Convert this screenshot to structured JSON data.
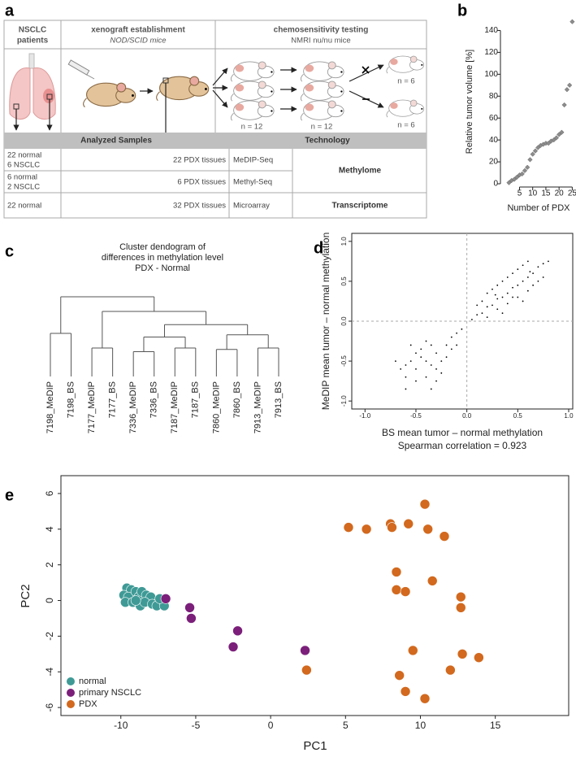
{
  "panel_a": {
    "label": "a",
    "columns": [
      {
        "title": [
          "NSCLC",
          "patients"
        ]
      },
      {
        "title": [
          "xenograft establishment"
        ],
        "subtitle": "NOD/SCID mice"
      },
      {
        "title": [
          "chemosensitivity testing"
        ],
        "subtitle": "NMRI nu/nu mice"
      }
    ],
    "group_sizes": [
      "n = 12",
      "n = 12",
      "n = 6",
      "n = 6"
    ],
    "table": {
      "headers": [
        "Analyzed Samples",
        "Technology"
      ],
      "rows": [
        {
          "samples": [
            "22 normal",
            "6 NSCLC"
          ],
          "tissues": "22 PDX tissues",
          "method": "MeDIP-Seq"
        },
        {
          "samples": [
            "6 normal",
            "2 NSCLC"
          ],
          "tissues": "6 PDX tissues",
          "method": "Methyl-Seq"
        },
        {
          "samples": [
            "22 normal"
          ],
          "tissues": "32 PDX tissues",
          "method": "Microarray"
        }
      ],
      "technologies": [
        "Methylome",
        "Transcriptome"
      ]
    }
  },
  "chart_data": [
    {
      "type": "scatter",
      "panel": "b",
      "x": [
        1,
        2,
        3,
        4,
        5,
        6,
        7,
        8,
        9,
        10,
        11,
        12,
        13,
        14,
        15,
        16,
        17,
        18,
        19,
        20,
        21,
        22,
        23,
        24,
        25
      ],
      "y": [
        1,
        3,
        4,
        6,
        8,
        9,
        12,
        15,
        22,
        27,
        30,
        33,
        35,
        36,
        37,
        37,
        39,
        40,
        42,
        45,
        47,
        72,
        86,
        90,
        148
      ],
      "xlabel": "Number of PDX",
      "ylabel": "Relative tumor volume [%]",
      "xlim": [
        -1,
        25.5
      ],
      "ylim": [
        0,
        150
      ],
      "xticks": [
        5,
        10,
        15,
        20,
        25
      ],
      "yticks": [
        0,
        20,
        40,
        60,
        80,
        100,
        120,
        140
      ],
      "color": "#8c8c8c",
      "marker": "diamond"
    },
    {
      "type": "dendrogram",
      "panel": "c",
      "title": [
        "Cluster dendogram of",
        "differences in methylation level",
        "PDX - Normal"
      ],
      "leaves": [
        "7198_MeDIP",
        "7198_BS",
        "7177_MeDIP",
        "7177_BS",
        "7336_MeDIP",
        "7336_BS",
        "7187_MeDIP",
        "7187_BS",
        "7860_MeDIP",
        "7860_BS",
        "7913_MeDIP",
        "7913_BS"
      ],
      "merges": [
        {
          "children": [
            0,
            1
          ],
          "height": 50
        },
        {
          "children": [
            2,
            3
          ],
          "height": 30
        },
        {
          "children": [
            4,
            5
          ],
          "height": 25
        },
        {
          "children": [
            6,
            7
          ],
          "height": 30
        },
        {
          "children": [
            8,
            9
          ],
          "height": 28
        },
        {
          "children": [
            10,
            11
          ],
          "height": 30
        },
        {
          "children": [
            14,
            15
          ],
          "height": 45
        },
        {
          "children": [
            16,
            17
          ],
          "height": 48
        },
        {
          "children": [
            18,
            19
          ],
          "height": 62
        },
        {
          "children": [
            13,
            20
          ],
          "height": 80
        },
        {
          "children": [
            12,
            21
          ],
          "height": 100
        }
      ],
      "ylim": [
        0,
        100
      ]
    },
    {
      "type": "scatter",
      "panel": "d",
      "x": [
        0.05,
        0.1,
        0.15,
        0.2,
        0.25,
        0.3,
        0.35,
        0.4,
        0.45,
        0.5,
        0.55,
        0.6,
        0.65,
        0.7,
        0.75,
        0.8,
        0.2,
        0.3,
        0.4,
        0.5,
        0.6,
        0.3,
        0.4,
        0.5,
        0.6,
        0.7,
        0.25,
        0.45,
        0.35,
        0.55,
        0.15,
        0.1,
        0.65,
        0.75,
        0.55,
        0.2,
        0.45,
        0.35,
        0.62,
        0.28,
        -0.4,
        -0.3,
        -0.5,
        -0.2,
        -0.6,
        -0.35,
        -0.45,
        -0.25,
        -0.55,
        -0.15,
        -0.1,
        -0.3,
        -0.5,
        -0.4,
        -0.6,
        -0.2,
        -0.45,
        -0.35,
        -0.65,
        -0.25,
        -0.05,
        -0.5,
        -0.7,
        -0.3,
        -0.4,
        -0.15,
        -0.55,
        -0.1,
        -0.6,
        -0.35
      ],
      "y": [
        0.02,
        0.08,
        0.1,
        0.18,
        0.2,
        0.28,
        0.3,
        0.35,
        0.42,
        0.45,
        0.5,
        0.55,
        0.6,
        0.68,
        0.72,
        0.75,
        0.35,
        0.45,
        0.55,
        0.65,
        0.75,
        0.15,
        0.22,
        0.3,
        0.38,
        0.5,
        0.4,
        0.6,
        0.1,
        0.25,
        0.25,
        0.2,
        0.45,
        0.55,
        0.7,
        0.05,
        0.3,
        0.5,
        0.62,
        0.33,
        -0.5,
        -0.4,
        -0.6,
        -0.3,
        -0.7,
        -0.55,
        -0.45,
        -0.5,
        -0.5,
        -0.2,
        -0.15,
        -0.6,
        -0.4,
        -0.7,
        -0.55,
        -0.45,
        -0.35,
        -0.3,
        -0.6,
        -0.65,
        -0.1,
        -0.75,
        -0.5,
        -0.75,
        -0.25,
        -0.35,
        -0.3,
        -0.3,
        -0.85,
        -0.85
      ],
      "xlabel": "BS mean tumor – normal methylation",
      "ylabel": "MeDIP mean tumor – normal methylation",
      "annotation": "Spearman correlation = 0.923",
      "xlim": [
        -1.13,
        1.04
      ],
      "ylim": [
        -1.1,
        1.1
      ],
      "xticks": [
        {
          "value": -1,
          "label": "-1.0"
        },
        -0.5,
        {
          "value": 0,
          "label": "0.0"
        },
        0.5,
        {
          "value": 1,
          "label": "1.0"
        }
      ],
      "yticks": [
        {
          "value": -1,
          "label": "-1.0"
        },
        -0.5,
        {
          "value": 0,
          "label": "0.0"
        },
        0.5,
        {
          "value": 1,
          "label": "1.0"
        }
      ],
      "color": "#000000",
      "zero_lines": true
    },
    {
      "type": "scatter",
      "panel": "e",
      "series": [
        {
          "name": "normal",
          "color": "#3f9a96",
          "x": [
            -9.6,
            -9.3,
            -9.8,
            -9.5,
            -9.0,
            -8.8,
            -8.6,
            -8.3,
            -8.0,
            -9.7,
            -9.2,
            -8.7,
            -8.4,
            -7.9,
            -7.6,
            -7.1,
            -7.4,
            -9.0
          ],
          "y": [
            0.7,
            0.6,
            0.3,
            0.2,
            0.5,
            0.2,
            0.5,
            0.3,
            0.2,
            -0.1,
            -0.1,
            -0.3,
            -0.1,
            -0.2,
            -0.3,
            -0.3,
            0.1,
            0.0
          ]
        },
        {
          "name": "primary NSCLC",
          "color": "#7b1f7a",
          "x": [
            -7.0,
            -5.4,
            -5.3,
            -2.2,
            -2.5,
            2.3
          ],
          "y": [
            0.1,
            -0.4,
            -1.0,
            -1.7,
            -2.6,
            -2.8
          ]
        },
        {
          "name": "PDX",
          "color": "#d2691e",
          "x": [
            5.2,
            6.4,
            8.0,
            8.1,
            9.2,
            10.3,
            10.5,
            11.6,
            8.4,
            8.4,
            9.0,
            10.8,
            12.7,
            12.7,
            9.5,
            12.8,
            13.9,
            2.4,
            8.6,
            12.0,
            9.0,
            10.3
          ],
          "y": [
            4.1,
            4.0,
            4.3,
            4.1,
            4.3,
            5.4,
            4.0,
            3.6,
            1.6,
            0.6,
            0.5,
            1.1,
            0.2,
            -0.4,
            -2.8,
            -3.0,
            -3.2,
            -3.9,
            -4.2,
            -3.9,
            -5.1,
            -5.5
          ]
        }
      ],
      "xlabel": "PC1",
      "ylabel": "PC2",
      "xlim": [
        -14.0,
        19.9
      ],
      "ylim": [
        -6.45,
        7.0
      ],
      "xticks": [
        -10,
        -5,
        0,
        5,
        10,
        15
      ],
      "yticks": [
        -6,
        -4,
        -2,
        0,
        2,
        4,
        6
      ],
      "legend": "lower left"
    }
  ]
}
